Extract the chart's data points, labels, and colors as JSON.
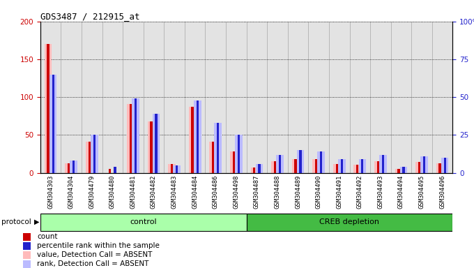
{
  "title": "GDS3487 / 212915_at",
  "samples": [
    "GSM304303",
    "GSM304304",
    "GSM304479",
    "GSM304480",
    "GSM304481",
    "GSM304482",
    "GSM304483",
    "GSM304484",
    "GSM304486",
    "GSM304498",
    "GSM304487",
    "GSM304488",
    "GSM304489",
    "GSM304490",
    "GSM304491",
    "GSM304492",
    "GSM304493",
    "GSM304494",
    "GSM304495",
    "GSM304496"
  ],
  "count_values": [
    170,
    13,
    41,
    5,
    91,
    68,
    12,
    87,
    41,
    28,
    7,
    15,
    18,
    18,
    12,
    11,
    15,
    5,
    14,
    13
  ],
  "rank_values": [
    65,
    8,
    25,
    4,
    49,
    39,
    5,
    48,
    33,
    25,
    6,
    12,
    15,
    14,
    9,
    9,
    12,
    4,
    11,
    10
  ],
  "absent_count": [
    170,
    13,
    41,
    0,
    91,
    68,
    12,
    87,
    41,
    28,
    7,
    15,
    18,
    18,
    12,
    11,
    15,
    5,
    14,
    13
  ],
  "absent_rank": [
    65,
    8,
    25,
    0,
    49,
    39,
    5,
    48,
    33,
    25,
    6,
    12,
    15,
    14,
    9,
    9,
    12,
    4,
    11,
    10
  ],
  "control_group": [
    0,
    1,
    2,
    3,
    4,
    5,
    6,
    7,
    8,
    9
  ],
  "creb_group": [
    10,
    11,
    12,
    13,
    14,
    15,
    16,
    17,
    18,
    19
  ],
  "ylim_left": [
    0,
    200
  ],
  "ylim_right": [
    0,
    100
  ],
  "yticks_left": [
    0,
    50,
    100,
    150,
    200
  ],
  "yticks_right": [
    0,
    25,
    50,
    75,
    100
  ],
  "color_count": "#cc0000",
  "color_rank": "#2222cc",
  "color_absent_count": "#ffbbbb",
  "color_absent_rank": "#bbbbff",
  "color_bar_bg": "#cccccc",
  "legend_items": [
    {
      "label": "count",
      "color": "#cc0000"
    },
    {
      "label": "percentile rank within the sample",
      "color": "#2222cc"
    },
    {
      "label": "value, Detection Call = ABSENT",
      "color": "#ffbbbb"
    },
    {
      "label": "rank, Detection Call = ABSENT",
      "color": "#bbbbff"
    }
  ]
}
